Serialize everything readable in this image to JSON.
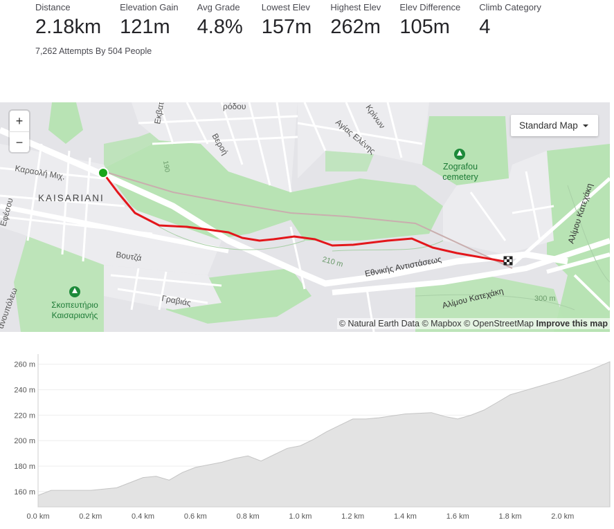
{
  "stats": [
    {
      "label": "Distance",
      "value": "2.18km"
    },
    {
      "label": "Elevation Gain",
      "value": "121m"
    },
    {
      "label": "Avg Grade",
      "value": "4.8%"
    },
    {
      "label": "Lowest Elev",
      "value": "157m"
    },
    {
      "label": "Highest Elev",
      "value": "262m"
    },
    {
      "label": "Elev Difference",
      "value": "105m"
    },
    {
      "label": "Climb Category",
      "value": "4"
    }
  ],
  "attempts": "7,262 Attempts By 504 People",
  "map": {
    "zoom_in": "+",
    "zoom_out": "−",
    "style_select": "Standard Map",
    "attribution_main": "© Natural Earth Data © Mapbox © OpenStreetMap",
    "attribution_link": "Improve this map",
    "labels": {
      "kaisariani": "KAISARIANI",
      "zografou": "Zografou",
      "cemetery": "cemetery",
      "skopeftirio1": "Σκοπευτήριο",
      "skopeftirio2": "Καισαριανής",
      "karaoli": "Καραολή Μιχ.",
      "voutza": "Βουτζά",
      "gravias": "Γραβιάς",
      "ethnikis": "Εθνικής Αντιστάσεως",
      "alimou": "Αλίμου Κατεχάκη",
      "alimou2": "Αλίμου Κατεχάκη",
      "veroi": "Βεροή",
      "agias": "Αγίας Ελένης",
      "krinon": "Κρίνων",
      "ekvat": "Εκβατ",
      "efesou": "Εφέσου",
      "ano_polis": "ανουπόλεω",
      "rodou": "ρόδου",
      "m210": "210 m",
      "m300": "300 m",
      "m190": "190"
    },
    "colors": {
      "route": "#e3161b",
      "start": "#1aa51a",
      "park": "#b8e3b4"
    }
  },
  "chart_data": {
    "type": "area",
    "ylabel_unit": "m",
    "x": [
      0.0,
      0.05,
      0.1,
      0.2,
      0.3,
      0.35,
      0.4,
      0.45,
      0.5,
      0.55,
      0.6,
      0.7,
      0.75,
      0.8,
      0.85,
      0.9,
      0.95,
      1.0,
      1.05,
      1.1,
      1.15,
      1.2,
      1.25,
      1.3,
      1.4,
      1.5,
      1.55,
      1.6,
      1.65,
      1.7,
      1.75,
      1.8,
      1.9,
      2.0,
      2.1,
      2.18
    ],
    "values": [
      157,
      161,
      161,
      161,
      163,
      167,
      171,
      172,
      169,
      175,
      179,
      183,
      186,
      188,
      184,
      189,
      194,
      196,
      201,
      207,
      212,
      217,
      217,
      218,
      221,
      222,
      219,
      217,
      220,
      224,
      230,
      236,
      242,
      248,
      255,
      262
    ],
    "yticks": [
      160,
      180,
      200,
      220,
      240,
      260
    ],
    "xticks": [
      0.0,
      0.2,
      0.4,
      0.6,
      0.8,
      1.0,
      1.2,
      1.4,
      1.6,
      1.8,
      2.0
    ],
    "ytick_labels": [
      "160 m",
      "180 m",
      "200 m",
      "220 m",
      "240 m",
      "260 m"
    ],
    "xtick_labels": [
      "0.0 km",
      "0.2 km",
      "0.4 km",
      "0.6 km",
      "0.8 km",
      "1.0 km",
      "1.2 km",
      "1.4 km",
      "1.6 km",
      "1.8 km",
      "2.0 km"
    ],
    "xlim": [
      0,
      2.18
    ],
    "ylim": [
      148,
      268
    ],
    "fill": "#e3e3e3",
    "line": "#c4c4c4"
  }
}
